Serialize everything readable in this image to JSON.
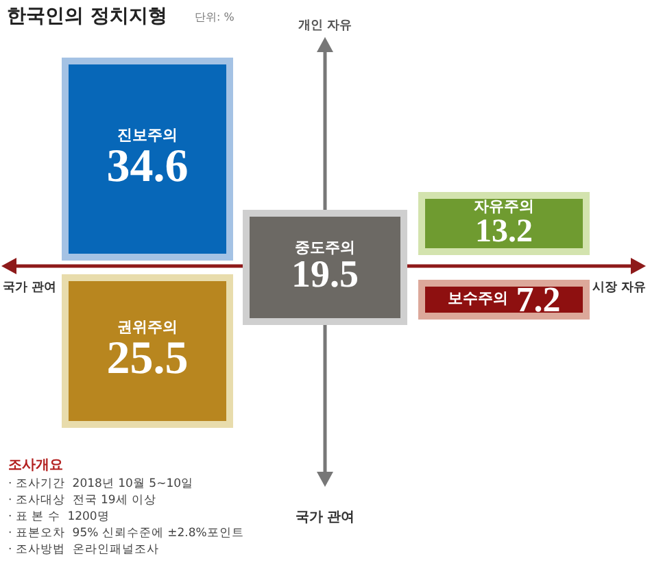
{
  "chart_data": {
    "type": "other",
    "title": "한국인의 정치지형",
    "subtitle": "단위: %",
    "categories": [
      "진보주의",
      "권위주의",
      "중도주의",
      "자유주의",
      "보수주의"
    ],
    "values": [
      34.6,
      25.5,
      19.5,
      13.2,
      7.2
    ],
    "colors": [
      "#0767b8",
      "#b8861f",
      "#6c6964",
      "#6f9b30",
      "#8e1010"
    ],
    "data_labels": true,
    "annotations": [
      "개인 자유",
      "국가 관여",
      "국가 관여",
      "시장 자유",
      "조사개요",
      "· 조사기간  2018년 10월 5~10일",
      "· 조사대상  전국 19세 이상",
      "· 표 본 수  1200명",
      "· 표본오차  95% 신뢰수준에 ±2.8%포인트",
      "· 조사방법  온라인패널조사"
    ]
  }
}
